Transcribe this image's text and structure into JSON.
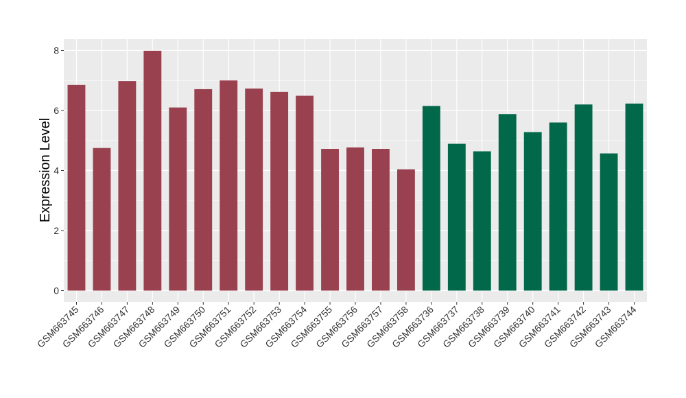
{
  "chart_data": {
    "type": "bar",
    "title": "",
    "xlabel": "",
    "ylabel": "Expression Level",
    "ylim": [
      0,
      8.4
    ],
    "y_ticks": [
      0,
      2,
      4,
      6,
      8
    ],
    "grid": true,
    "legend": "none",
    "categories": [
      "GSM663745",
      "GSM663746",
      "GSM663747",
      "GSM663748",
      "GSM663749",
      "GSM663750",
      "GSM663751",
      "GSM663752",
      "GSM663753",
      "GSM663754",
      "GSM663755",
      "GSM663756",
      "GSM663757",
      "GSM663758",
      "GSM663736",
      "GSM663737",
      "GSM663738",
      "GSM663739",
      "GSM663740",
      "GSM663741",
      "GSM663742",
      "GSM663743",
      "GSM663744"
    ],
    "values": [
      6.85,
      4.75,
      6.98,
      7.99,
      6.1,
      6.71,
      7.0,
      6.73,
      6.62,
      6.49,
      4.72,
      4.77,
      4.72,
      4.04,
      6.15,
      4.89,
      4.64,
      5.88,
      5.28,
      5.6,
      6.2,
      4.57,
      6.23
    ],
    "groups": [
      "a",
      "a",
      "a",
      "a",
      "a",
      "a",
      "a",
      "a",
      "a",
      "a",
      "a",
      "a",
      "a",
      "a",
      "b",
      "b",
      "b",
      "b",
      "b",
      "b",
      "b",
      "b",
      "b"
    ],
    "group_colors": {
      "a": "#9a4150",
      "b": "#02684a"
    },
    "panel_background": "#ebebeb",
    "grid_color": "#ffffff"
  }
}
